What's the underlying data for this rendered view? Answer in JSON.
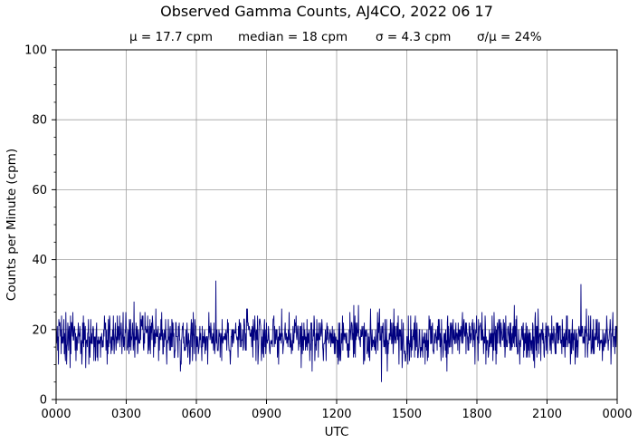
{
  "chart_data": {
    "type": "line",
    "title": "Observed Gamma Counts, AJ4CO, 2022 06 17",
    "subtitle": {
      "mean": "μ = 17.7 cpm",
      "median": "median = 18 cpm",
      "sigma": "σ = 4.3 cpm",
      "ratio": "σ/μ = 24%"
    },
    "xlabel": "UTC",
    "ylabel": "Counts per Minute (cpm)",
    "x_ticks": [
      "0000",
      "0300",
      "0600",
      "0900",
      "1200",
      "1500",
      "1800",
      "2100",
      "0000"
    ],
    "x_range_minutes": [
      0,
      1440
    ],
    "ylim": [
      0,
      100
    ],
    "y_ticks": [
      0,
      20,
      40,
      60,
      80,
      100
    ],
    "y_minor_step": 5,
    "grid": true,
    "sample_interval_minutes": 1,
    "series": [
      {
        "color": "#00007f",
        "stats": {
          "mean": 17.7,
          "median": 18,
          "sigma": 4.3,
          "min": 5,
          "max": 34
        },
        "notable_points": [
          {
            "x": "0650",
            "y": 34
          },
          {
            "x": "2227",
            "y": 33
          },
          {
            "x": "1355",
            "y": 5
          }
        ]
      }
    ]
  }
}
